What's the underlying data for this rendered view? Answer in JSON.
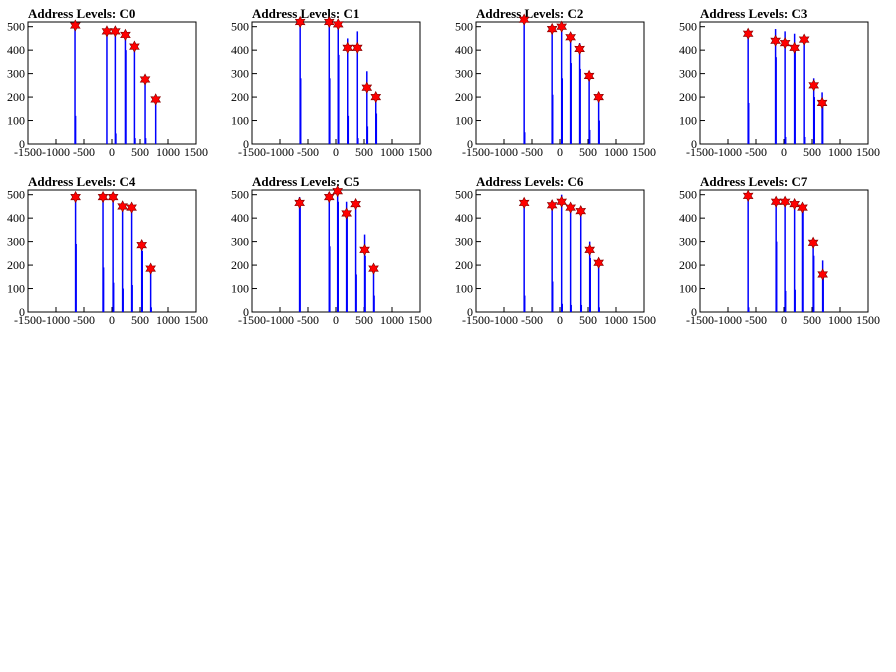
{
  "figure": {
    "background": "#ffffff"
  },
  "style": {
    "histogram_color": "#0000ff",
    "marker_color": "#ff0000",
    "marker_outline": "#800000",
    "axis_color": "#000000"
  },
  "chart_data": [
    {
      "type": "bar",
      "title": "Address Levels: C0",
      "xlabel": "",
      "ylabel": "",
      "xlim": [
        -1500,
        1500
      ],
      "ylim": [
        0,
        520
      ],
      "xticks": [
        -1500,
        -1000,
        -500,
        0,
        500,
        1000,
        1500
      ],
      "yticks": [
        0,
        100,
        200,
        300,
        400,
        500
      ],
      "bars": [
        [
          -660,
          500
        ],
        [
          -650,
          120
        ],
        [
          -90,
          480
        ],
        [
          60,
          480
        ],
        [
          70,
          45
        ],
        [
          240,
          470
        ],
        [
          250,
          400
        ],
        [
          400,
          410
        ],
        [
          410,
          25
        ],
        [
          590,
          270
        ],
        [
          600,
          25
        ],
        [
          780,
          190
        ]
      ],
      "peaks": [
        [
          -655,
          505
        ],
        [
          -90,
          480
        ],
        [
          60,
          480
        ],
        [
          240,
          465
        ],
        [
          400,
          415
        ],
        [
          590,
          275
        ],
        [
          780,
          190
        ]
      ]
    },
    {
      "type": "bar",
      "title": "Address Levels: C1",
      "xlabel": "",
      "ylabel": "",
      "xlim": [
        -1500,
        1500
      ],
      "ylim": [
        0,
        520
      ],
      "xticks": [
        -1500,
        -1000,
        -500,
        0,
        500,
        1000,
        1500
      ],
      "yticks": [
        0,
        100,
        200,
        300,
        400,
        500
      ],
      "bars": [
        [
          -640,
          520
        ],
        [
          -630,
          280
        ],
        [
          -120,
          520
        ],
        [
          -110,
          280
        ],
        [
          40,
          500
        ],
        [
          50,
          380
        ],
        [
          210,
          450
        ],
        [
          220,
          120
        ],
        [
          380,
          480
        ],
        [
          390,
          25
        ],
        [
          550,
          310
        ],
        [
          560,
          75
        ],
        [
          710,
          200
        ],
        [
          720,
          130
        ]
      ],
      "peaks": [
        [
          -640,
          520
        ],
        [
          -120,
          520
        ],
        [
          40,
          510
        ],
        [
          210,
          410
        ],
        [
          380,
          410
        ],
        [
          550,
          240
        ],
        [
          710,
          200
        ]
      ]
    },
    {
      "type": "bar",
      "title": "Address Levels: C2",
      "xlabel": "",
      "ylabel": "",
      "xlim": [
        -1500,
        1500
      ],
      "ylim": [
        0,
        520
      ],
      "xticks": [
        -1500,
        -1000,
        -500,
        0,
        500,
        1000,
        1500
      ],
      "yticks": [
        0,
        100,
        200,
        300,
        400,
        500
      ],
      "bars": [
        [
          -640,
          530
        ],
        [
          -630,
          50
        ],
        [
          -140,
          490
        ],
        [
          -130,
          210
        ],
        [
          30,
          500
        ],
        [
          40,
          280
        ],
        [
          190,
          470
        ],
        [
          200,
          345
        ],
        [
          350,
          430
        ],
        [
          360,
          320
        ],
        [
          520,
          290
        ],
        [
          530,
          60
        ],
        [
          690,
          200
        ],
        [
          700,
          100
        ]
      ],
      "peaks": [
        [
          -640,
          530
        ],
        [
          -140,
          490
        ],
        [
          30,
          500
        ],
        [
          190,
          455
        ],
        [
          350,
          405
        ],
        [
          520,
          290
        ],
        [
          690,
          200
        ]
      ]
    },
    {
      "type": "bar",
      "title": "Address Levels: C3",
      "xlabel": "",
      "ylabel": "",
      "xlim": [
        -1500,
        1500
      ],
      "ylim": [
        0,
        520
      ],
      "xticks": [
        -1500,
        -1000,
        -500,
        0,
        500,
        1000,
        1500
      ],
      "yticks": [
        0,
        100,
        200,
        300,
        400,
        500
      ],
      "bars": [
        [
          -640,
          480
        ],
        [
          -630,
          175
        ],
        [
          -150,
          490
        ],
        [
          -140,
          370
        ],
        [
          20,
          480
        ],
        [
          30,
          30
        ],
        [
          190,
          470
        ],
        [
          200,
          420
        ],
        [
          360,
          460
        ],
        [
          370,
          30
        ],
        [
          530,
          280
        ],
        [
          540,
          200
        ],
        [
          680,
          220
        ],
        [
          690,
          180
        ]
      ],
      "peaks": [
        [
          -640,
          470
        ],
        [
          -150,
          440
        ],
        [
          20,
          430
        ],
        [
          190,
          410
        ],
        [
          360,
          445
        ],
        [
          530,
          250
        ],
        [
          680,
          175
        ]
      ]
    },
    {
      "type": "bar",
      "title": "Address Levels: C4",
      "xlabel": "",
      "ylabel": "",
      "xlim": [
        -1500,
        1500
      ],
      "ylim": [
        0,
        520
      ],
      "xticks": [
        -1500,
        -1000,
        -500,
        0,
        500,
        1000,
        1500
      ],
      "yticks": [
        0,
        100,
        200,
        300,
        400,
        500
      ],
      "bars": [
        [
          -650,
          500
        ],
        [
          -640,
          290
        ],
        [
          -160,
          500
        ],
        [
          -150,
          190
        ],
        [
          20,
          500
        ],
        [
          30,
          125
        ],
        [
          190,
          470
        ],
        [
          200,
          100
        ],
        [
          350,
          460
        ],
        [
          360,
          115
        ],
        [
          530,
          290
        ],
        [
          540,
          260
        ],
        [
          690,
          190
        ],
        [
          700,
          20
        ]
      ],
      "peaks": [
        [
          -650,
          490
        ],
        [
          -160,
          490
        ],
        [
          20,
          490
        ],
        [
          190,
          450
        ],
        [
          350,
          445
        ],
        [
          530,
          285
        ],
        [
          690,
          185
        ]
      ]
    },
    {
      "type": "bar",
      "title": "Address Levels: C5",
      "xlabel": "",
      "ylabel": "",
      "xlim": [
        -1500,
        1500
      ],
      "ylim": [
        0,
        520
      ],
      "xticks": [
        -1500,
        -1000,
        -500,
        0,
        500,
        1000,
        1500
      ],
      "yticks": [
        0,
        100,
        200,
        300,
        400,
        500
      ],
      "bars": [
        [
          -650,
          490
        ],
        [
          -640,
          470
        ],
        [
          -120,
          500
        ],
        [
          -110,
          280
        ],
        [
          30,
          500
        ],
        [
          40,
          470
        ],
        [
          190,
          470
        ],
        [
          200,
          430
        ],
        [
          350,
          470
        ],
        [
          360,
          160
        ],
        [
          510,
          330
        ],
        [
          520,
          240
        ],
        [
          670,
          200
        ],
        [
          680,
          70
        ]
      ],
      "peaks": [
        [
          -650,
          465
        ],
        [
          -120,
          490
        ],
        [
          30,
          515
        ],
        [
          190,
          420
        ],
        [
          350,
          460
        ],
        [
          510,
          265
        ],
        [
          670,
          185
        ]
      ]
    },
    {
      "type": "bar",
      "title": "Address Levels: C6",
      "xlabel": "",
      "ylabel": "",
      "xlim": [
        -1500,
        1500
      ],
      "ylim": [
        0,
        520
      ],
      "xticks": [
        -1500,
        -1000,
        -500,
        0,
        500,
        1000,
        1500
      ],
      "yticks": [
        0,
        100,
        200,
        300,
        400,
        500
      ],
      "bars": [
        [
          -640,
          480
        ],
        [
          -630,
          70
        ],
        [
          -140,
          470
        ],
        [
          -130,
          130
        ],
        [
          30,
          500
        ],
        [
          40,
          35
        ],
        [
          190,
          460
        ],
        [
          200,
          30
        ],
        [
          370,
          450
        ],
        [
          380,
          30
        ],
        [
          530,
          300
        ],
        [
          540,
          230
        ],
        [
          690,
          220
        ],
        [
          700,
          20
        ]
      ],
      "peaks": [
        [
          -640,
          465
        ],
        [
          -140,
          455
        ],
        [
          30,
          470
        ],
        [
          190,
          445
        ],
        [
          370,
          430
        ],
        [
          530,
          265
        ],
        [
          690,
          210
        ]
      ]
    },
    {
      "type": "bar",
      "title": "Address Levels: C7",
      "xlabel": "",
      "ylabel": "",
      "xlim": [
        -1500,
        1500
      ],
      "ylim": [
        0,
        520
      ],
      "xticks": [
        -1500,
        -1000,
        -500,
        0,
        500,
        1000,
        1500
      ],
      "yticks": [
        0,
        100,
        200,
        300,
        400,
        500
      ],
      "bars": [
        [
          -640,
          510
        ],
        [
          -630,
          20
        ],
        [
          -140,
          480
        ],
        [
          -130,
          300
        ],
        [
          20,
          480
        ],
        [
          30,
          90
        ],
        [
          190,
          470
        ],
        [
          200,
          95
        ],
        [
          330,
          460
        ],
        [
          340,
          440
        ],
        [
          520,
          300
        ],
        [
          530,
          240
        ],
        [
          690,
          220
        ],
        [
          700,
          150
        ]
      ],
      "peaks": [
        [
          -640,
          495
        ],
        [
          -140,
          470
        ],
        [
          20,
          470
        ],
        [
          190,
          460
        ],
        [
          330,
          445
        ],
        [
          520,
          295
        ],
        [
          690,
          160
        ]
      ]
    }
  ]
}
